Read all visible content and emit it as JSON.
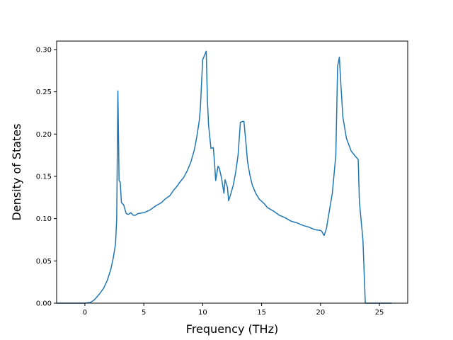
{
  "chart_data": {
    "type": "line",
    "title": "",
    "xlabel": "Frequency (THz)",
    "ylabel": "Density of States",
    "xlim": [
      -2.4,
      27.4
    ],
    "ylim": [
      0.0,
      0.31
    ],
    "xticks": [
      0,
      5,
      10,
      15,
      20,
      25
    ],
    "xtick_labels": [
      "0",
      "5",
      "10",
      "15",
      "20",
      "25"
    ],
    "yticks": [
      0.0,
      0.05,
      0.1,
      0.15,
      0.2,
      0.25,
      0.3
    ],
    "ytick_labels": [
      "0.00",
      "0.05",
      "0.10",
      "0.15",
      "0.20",
      "0.25",
      "0.30"
    ],
    "grid": false,
    "series": [
      {
        "color": "#1f77b4",
        "x": [
          -2.4,
          0.0,
          0.5,
          0.8,
          1.0,
          1.3,
          1.6,
          1.9,
          2.2,
          2.4,
          2.6,
          2.7,
          2.8,
          2.85,
          2.9,
          3.0,
          3.1,
          3.3,
          3.5,
          3.7,
          3.9,
          4.1,
          4.3,
          4.5,
          5.0,
          5.5,
          6.0,
          6.5,
          6.8,
          7.2,
          7.5,
          7.8,
          8.0,
          8.4,
          8.7,
          9.0,
          9.3,
          9.5,
          9.7,
          9.8,
          9.9,
          10.0,
          10.3,
          10.4,
          10.5,
          10.7,
          10.9,
          11.0,
          11.1,
          11.3,
          11.4,
          11.6,
          11.8,
          11.9,
          12.1,
          12.2,
          12.4,
          12.6,
          12.8,
          13.0,
          13.2,
          13.4,
          13.5,
          13.7,
          13.8,
          13.9,
          14.0,
          14.2,
          14.5,
          14.8,
          15.2,
          15.5,
          16.0,
          16.5,
          17.0,
          17.5,
          18.0,
          18.5,
          19.0,
          19.5,
          20.0,
          20.1,
          20.3,
          20.5,
          20.7,
          21.0,
          21.3,
          21.45,
          21.6,
          21.7,
          21.9,
          22.2,
          22.6,
          23.0,
          23.2,
          23.3,
          23.6,
          23.8,
          26.0
        ],
        "y": [
          0.0,
          0.0,
          0.001,
          0.004,
          0.007,
          0.012,
          0.018,
          0.027,
          0.04,
          0.053,
          0.07,
          0.1,
          0.251,
          0.2,
          0.145,
          0.143,
          0.119,
          0.116,
          0.106,
          0.105,
          0.107,
          0.104,
          0.104,
          0.106,
          0.107,
          0.11,
          0.115,
          0.119,
          0.123,
          0.127,
          0.133,
          0.138,
          0.142,
          0.149,
          0.157,
          0.167,
          0.182,
          0.197,
          0.215,
          0.23,
          0.26,
          0.288,
          0.298,
          0.24,
          0.21,
          0.183,
          0.184,
          0.167,
          0.145,
          0.162,
          0.16,
          0.148,
          0.13,
          0.146,
          0.137,
          0.121,
          0.13,
          0.14,
          0.155,
          0.175,
          0.214,
          0.215,
          0.215,
          0.185,
          0.168,
          0.16,
          0.152,
          0.14,
          0.13,
          0.123,
          0.118,
          0.113,
          0.109,
          0.104,
          0.101,
          0.097,
          0.095,
          0.092,
          0.09,
          0.087,
          0.086,
          0.085,
          0.08,
          0.088,
          0.105,
          0.13,
          0.175,
          0.28,
          0.291,
          0.265,
          0.22,
          0.195,
          0.18,
          0.173,
          0.17,
          0.12,
          0.075,
          0.0,
          0.0
        ]
      }
    ]
  }
}
